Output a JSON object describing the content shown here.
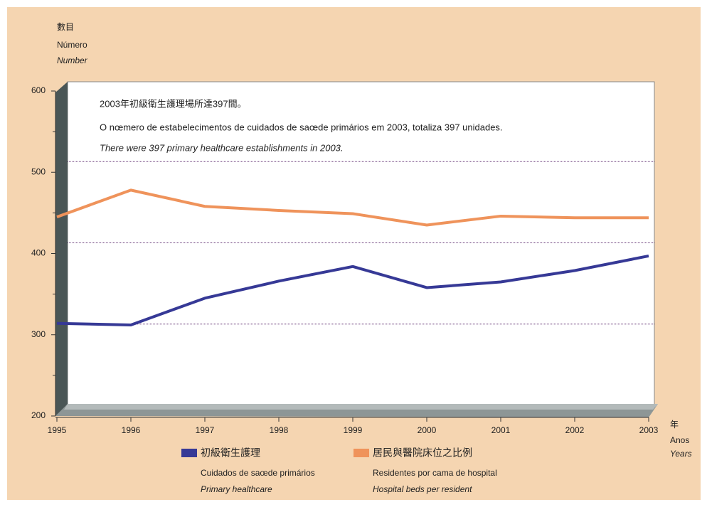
{
  "chart_data": {
    "type": "line",
    "y_label": [
      "數目",
      "Número",
      "Number"
    ],
    "x_label": [
      "年",
      "Anos",
      "Years"
    ],
    "annotation": [
      "2003年初級衛生護理場所達397間。",
      "O nœmero de estabelecimentos de cuidados de saœde primários em 2003, totaliza 397 unidades.",
      "There were 397 primary healthcare establishments in 2003."
    ],
    "x": [
      1995,
      1996,
      1997,
      1998,
      1999,
      2000,
      2001,
      2002,
      2003
    ],
    "xlim": [
      1995,
      2003
    ],
    "xticks": [
      1995,
      1996,
      1997,
      1998,
      1999,
      2000,
      2001,
      2002,
      2003
    ],
    "ylim": [
      200,
      600
    ],
    "yticks": [
      200,
      300,
      400,
      500,
      600
    ],
    "yticks_minor": [
      250,
      350,
      450,
      550
    ],
    "grid": true,
    "series": [
      {
        "name": "初級衛生護理",
        "name_pt": "Cuidados de saœde primários",
        "name_en": "Primary healthcare",
        "color": "#363996",
        "values": [
          314,
          312,
          345,
          366,
          384,
          358,
          365,
          379,
          397
        ]
      },
      {
        "name": "居民與醫院床位之比例",
        "name_pt": "Residentes por cama de hospital",
        "name_en": "Hospital beds per resident",
        "color": "#ef935b",
        "values": [
          445,
          478,
          458,
          453,
          449,
          435,
          446,
          444,
          444
        ]
      }
    ]
  }
}
